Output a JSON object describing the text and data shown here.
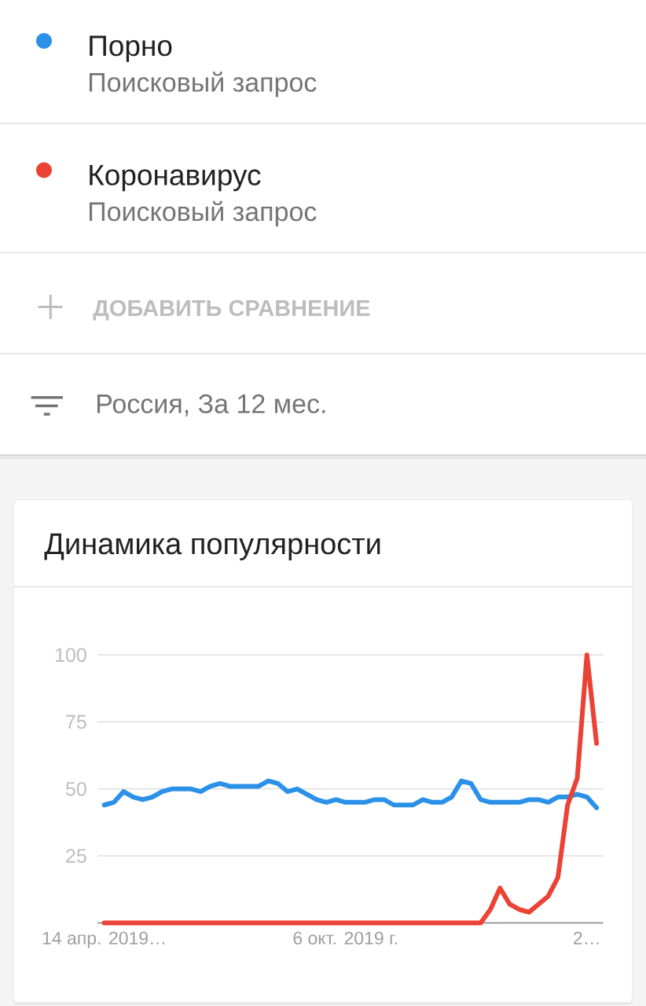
{
  "chart_data": {
    "type": "line",
    "title": "Динамика популярности",
    "subtitle": "Россия, За 12 мес.",
    "annotations": [
      "Поисковый запрос",
      "Поисковый запрос",
      "ДОБАВИТЬ СРАВНЕНИЕ"
    ],
    "categories": [
      "14 апр. 2019…",
      null,
      null,
      null,
      null,
      null,
      null,
      null,
      null,
      null,
      null,
      null,
      null,
      null,
      null,
      null,
      null,
      null,
      null,
      null,
      null,
      null,
      null,
      null,
      null,
      "6 окт. 2019 г.",
      null,
      null,
      null,
      null,
      null,
      null,
      null,
      null,
      null,
      null,
      null,
      null,
      null,
      null,
      null,
      null,
      null,
      null,
      null,
      null,
      null,
      null,
      null,
      null,
      "2…",
      null
    ],
    "series": [
      {
        "name": "Порно",
        "color": "#2b90e8",
        "values": [
          44,
          45,
          49,
          47,
          46,
          47,
          49,
          50,
          50,
          50,
          49,
          51,
          52,
          51,
          51,
          51,
          51,
          53,
          52,
          49,
          50,
          48,
          46,
          45,
          46,
          45,
          45,
          45,
          46,
          46,
          44,
          44,
          44,
          46,
          45,
          45,
          47,
          53,
          52,
          46,
          45,
          45,
          45,
          45,
          46,
          46,
          45,
          47,
          47,
          48,
          47,
          43
        ]
      },
      {
        "name": "Коронавирус",
        "color": "#ea4335",
        "values": [
          0,
          0,
          0,
          0,
          0,
          0,
          0,
          0,
          0,
          0,
          0,
          0,
          0,
          0,
          0,
          0,
          0,
          0,
          0,
          0,
          0,
          0,
          0,
          0,
          0,
          0,
          0,
          0,
          0,
          0,
          0,
          0,
          0,
          0,
          0,
          0,
          0,
          0,
          0,
          0,
          5,
          13,
          7,
          5,
          4,
          7,
          10,
          17,
          44,
          54,
          100,
          67
        ]
      }
    ],
    "ylim": [
      0,
      100
    ],
    "yticks": [
      25,
      50,
      75,
      100
    ],
    "grid": "y",
    "legend": "top"
  }
}
